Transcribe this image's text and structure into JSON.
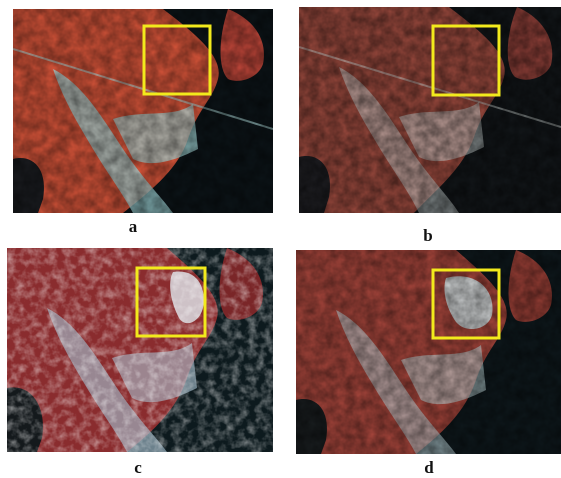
{
  "figure": {
    "panels": [
      {
        "label": "a",
        "style": "saturated-orange",
        "highlight_color": "#f2ea1c"
      },
      {
        "label": "b",
        "style": "muted-red",
        "highlight_color": "#f2ea1c"
      },
      {
        "label": "c",
        "style": "high-contrast-red",
        "highlight_color": "#f2ea1c"
      },
      {
        "label": "d",
        "style": "balanced-red",
        "highlight_color": "#f2ea1c"
      }
    ]
  },
  "colors": {
    "vegetation_a": "#d8553a",
    "vegetation_b": "#9c4a3e",
    "vegetation_c": "#8a2c2e",
    "vegetation_d": "#a8463c",
    "water": "#0c1418",
    "urban": "#9fd6d8",
    "highlight_box": "#f2ea1c"
  }
}
